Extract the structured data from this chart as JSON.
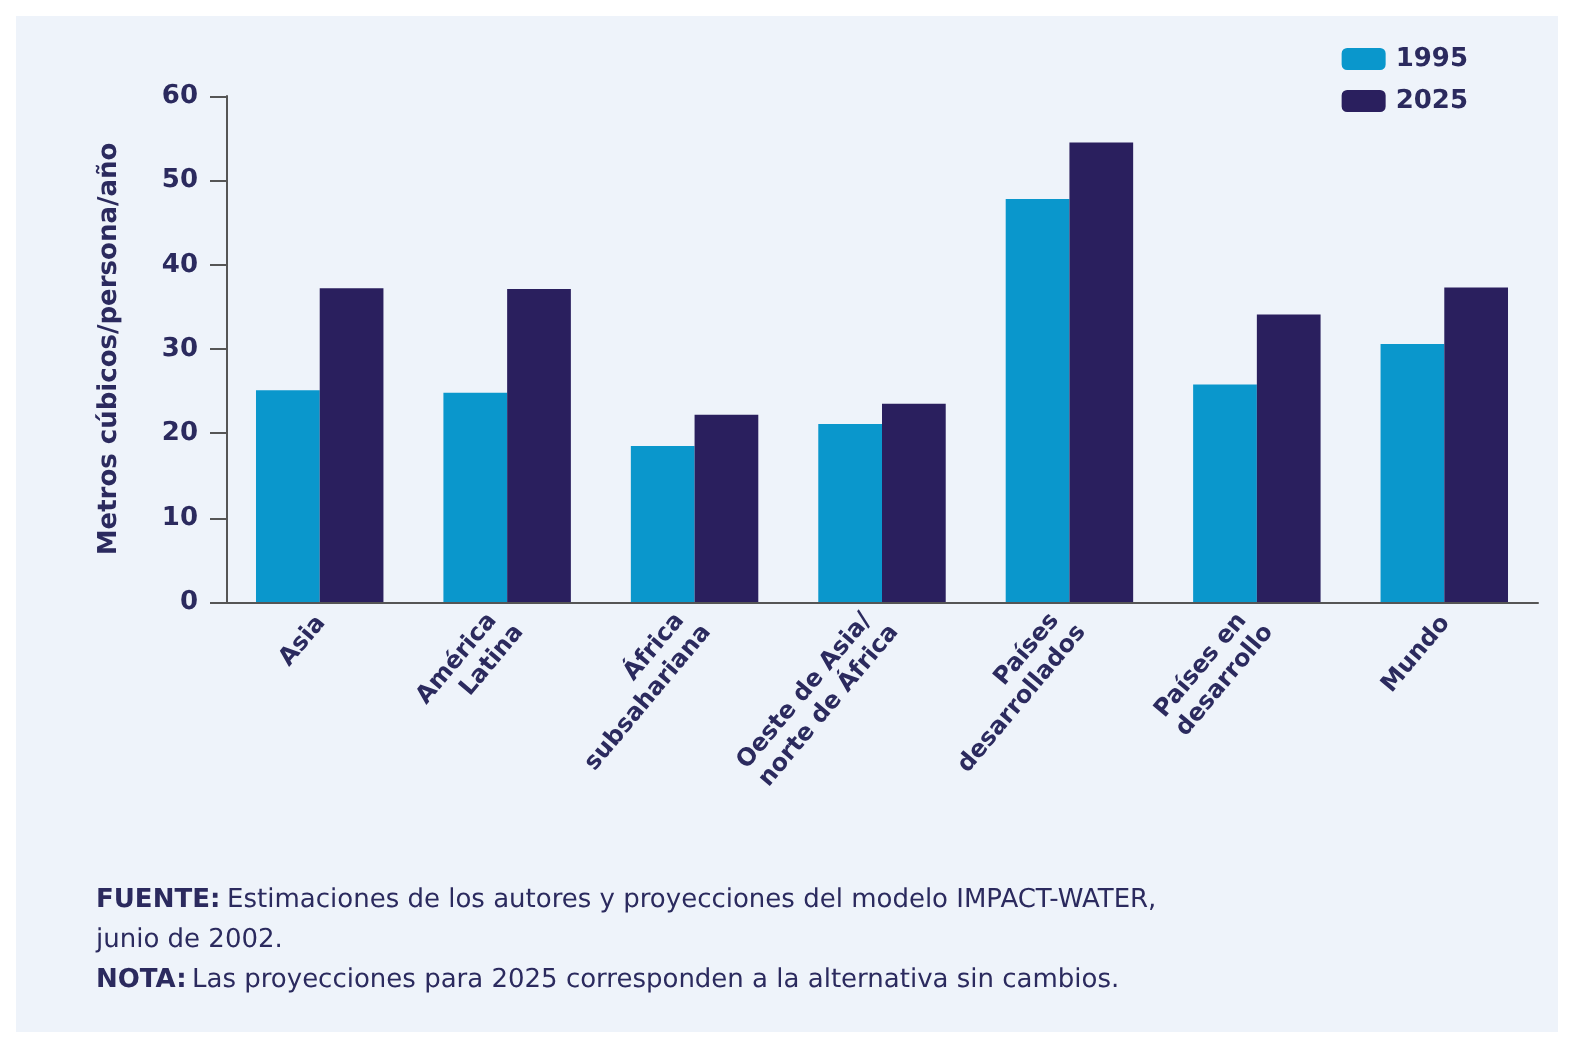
{
  "chart_data": {
    "type": "bar",
    "ylabel": "Metros cúbicos/persona/año",
    "categories": [
      "Asia",
      "América Latina",
      "África subsahariana",
      "Oeste de Asia/ norte de África",
      "Países desarrollados",
      "Países en desarrollo",
      "Mundo"
    ],
    "series": [
      {
        "name": "1995",
        "color": "#0a97cc",
        "values": [
          25.1,
          24.8,
          18.5,
          21.1,
          47.8,
          25.8,
          30.6
        ]
      },
      {
        "name": "2025",
        "color": "#2a1f5e",
        "values": [
          37.2,
          37.1,
          22.2,
          23.5,
          54.5,
          34.1,
          37.3
        ]
      }
    ],
    "ylim": [
      0,
      60
    ],
    "yticks": [
      0,
      10,
      20,
      30,
      40,
      50,
      60
    ],
    "grid": false,
    "legend": "top right",
    "annotations": [
      "FUENTE: Estimaciones de los autores y proyecciones del modelo IMPACT-WATER, junio de 2002.",
      "NOTA: Las proyecciones para 2025 corresponden a la alternativa sin cambios."
    ]
  }
}
